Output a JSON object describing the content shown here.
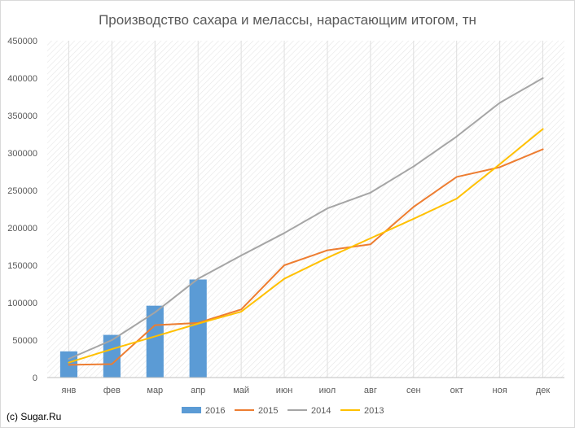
{
  "chart_data": {
    "type": "bar+line",
    "title": "Производство сахара и мелассы, нарастающим итогом, тн",
    "categories": [
      "янв",
      "фев",
      "мар",
      "апр",
      "май",
      "июн",
      "июл",
      "авг",
      "сен",
      "окт",
      "ноя",
      "дек"
    ],
    "ylim": [
      0,
      450000
    ],
    "yticks": [
      0,
      50000,
      100000,
      150000,
      200000,
      250000,
      300000,
      350000,
      400000,
      450000
    ],
    "grid": "hatched plot area with vertical lines at category centers",
    "legend_position": "bottom",
    "series": [
      {
        "name": "2016",
        "kind": "bar",
        "color": "#5b9bd5",
        "values": [
          35000,
          57000,
          96000,
          131000,
          null,
          null,
          null,
          null,
          null,
          null,
          null,
          null
        ]
      },
      {
        "name": "2015",
        "kind": "line",
        "color": "#ed7d31",
        "values": [
          17000,
          18000,
          70000,
          73000,
          91000,
          150000,
          170000,
          178000,
          228000,
          268000,
          281000,
          305000
        ]
      },
      {
        "name": "2014",
        "kind": "line",
        "color": "#a5a5a5",
        "values": [
          25000,
          50000,
          87000,
          132000,
          163000,
          193000,
          226000,
          247000,
          282000,
          322000,
          367000,
          400000
        ]
      },
      {
        "name": "2013",
        "kind": "line",
        "color": "#ffc000",
        "values": [
          20000,
          38000,
          55000,
          72000,
          88000,
          132000,
          160000,
          186000,
          212000,
          239000,
          285000,
          332000
        ]
      }
    ]
  },
  "copyright": "(c) Sugar.Ru"
}
